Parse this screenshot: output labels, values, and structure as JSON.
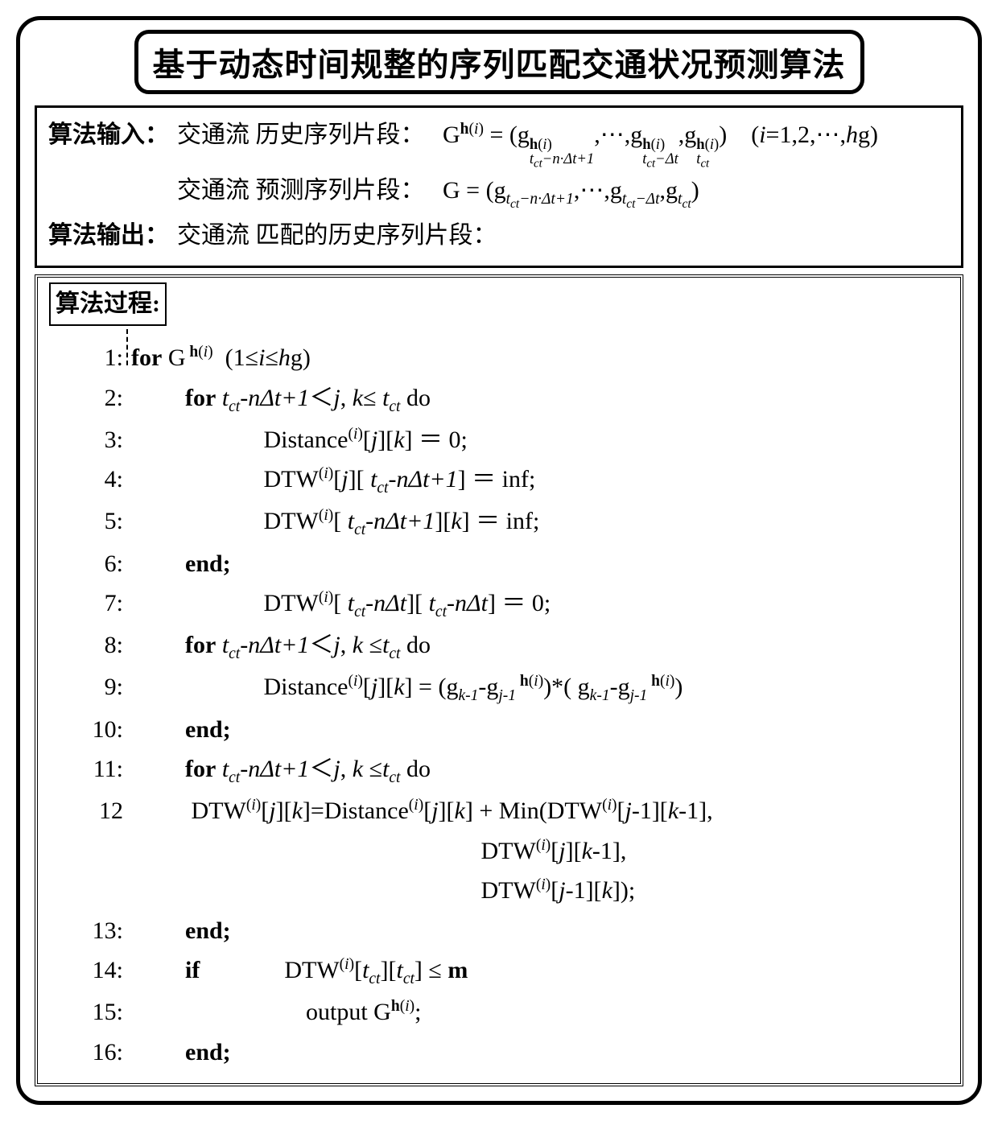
{
  "title": "基于动态时间规整的序列匹配交通状况预测算法",
  "io": {
    "input_label": "算法输入：",
    "output_label": "算法输出：",
    "hist_label": "交通流 历史序列片段：",
    "pred_label": "交通流 预测序列片段：",
    "match_label": "交通流 匹配的历史序列片段："
  },
  "process_label": "算法过程:",
  "lines": {
    "l1": "1:",
    "l2": "2:",
    "l3": "3:",
    "l4": "4:",
    "l5": "5:",
    "l6": "6:",
    "l7": "7:",
    "l8": "8:",
    "l9": "9:",
    "l10": "10:",
    "l11": "11:",
    "l12": "12",
    "l13": "13:",
    "l14": "14:",
    "l15": "15:",
    "l16": "16:"
  },
  "tokens": {
    "for": "for",
    "do": "do",
    "end": "end;",
    "if": "if",
    "output": "output",
    "G": "G",
    "g": "g",
    "Distance": "Distance",
    "DTW": "DTW",
    "Min": "Min",
    "inf": "inf",
    "hi": "h(i)",
    "i": "i",
    "j": "j",
    "k": "k",
    "h": "h",
    "g_l": "g",
    "tct": "t",
    "ct": "ct",
    "ctr": "ct",
    "n": "n",
    "Dt": "Δt",
    "plus1": "+1",
    "one": "1",
    "le": "≤",
    "lt": "<",
    "eq1": "＝",
    "eq2": "=",
    "zero": "0",
    "star": "*",
    "plus": "+",
    "comma": ",",
    "semicolon": ";",
    "lp": "(",
    "rp": ")",
    "lb": "[",
    "rb": "]",
    "dots": "⋯",
    "dash": "-",
    "m": "m",
    "range_i": "(i=1,2,⋯,hg)",
    "sub_first": "t",
    "sub_first2": "ct",
    "minusnDt1": "−n·Δt+1",
    "minusDt": "−Δt"
  },
  "style": {
    "fg": "#000000",
    "bg": "#ffffff",
    "title_fontsize": 40,
    "io_fontsize": 30,
    "process_fontsize": 30,
    "outer_border_width": 5,
    "outer_radius": 30,
    "title_border_width": 5,
    "title_radius": 18,
    "io_border_width": 3,
    "process_border_style": "double",
    "process_border_width": 4,
    "proclabel_border_width": 2
  }
}
